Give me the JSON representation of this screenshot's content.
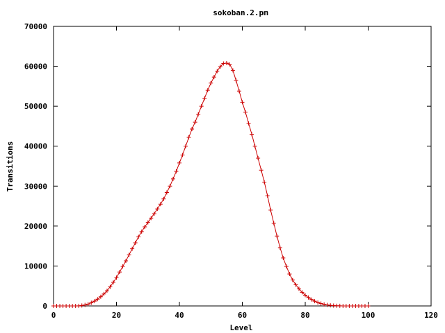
{
  "chart_data": {
    "type": "line",
    "title": "sokoban.2.pm",
    "xlabel": "Level",
    "ylabel": "Transitions",
    "xlim": [
      0,
      120
    ],
    "ylim": [
      0,
      70000
    ],
    "xticks": [
      "0",
      "20",
      "40",
      "60",
      "80",
      "100",
      "120"
    ],
    "yticks": [
      "0",
      "10000",
      "20000",
      "30000",
      "40000",
      "50000",
      "60000",
      "70000"
    ],
    "grid": false,
    "legend": "none",
    "marker": "plus",
    "series": [
      {
        "color": "#cc0000",
        "x": [
          0,
          1,
          2,
          3,
          4,
          5,
          6,
          7,
          8,
          9,
          10,
          11,
          12,
          13,
          14,
          15,
          16,
          17,
          18,
          19,
          20,
          21,
          22,
          23,
          24,
          25,
          26,
          27,
          28,
          29,
          30,
          31,
          32,
          33,
          34,
          35,
          36,
          37,
          38,
          39,
          40,
          41,
          42,
          43,
          44,
          45,
          46,
          47,
          48,
          49,
          50,
          51,
          52,
          53,
          54,
          55,
          56,
          57,
          58,
          59,
          60,
          61,
          62,
          63,
          64,
          65,
          66,
          67,
          68,
          69,
          70,
          71,
          72,
          73,
          74,
          75,
          76,
          77,
          78,
          79,
          80,
          81,
          82,
          83,
          84,
          85,
          86,
          87,
          88,
          89,
          90,
          91,
          92,
          93,
          94,
          95,
          96,
          97,
          98,
          99,
          100
        ],
        "y": [
          0,
          0,
          0,
          0,
          0,
          0,
          0,
          0,
          20,
          100,
          250,
          450,
          800,
          1200,
          1700,
          2300,
          3000,
          3800,
          4800,
          5900,
          7100,
          8500,
          9900,
          11300,
          12800,
          14300,
          15800,
          17300,
          18600,
          19800,
          20900,
          22000,
          23100,
          24300,
          25500,
          26800,
          28400,
          30000,
          31800,
          33700,
          35800,
          37800,
          40000,
          42200,
          44300,
          46000,
          48000,
          50000,
          52000,
          54000,
          55800,
          57300,
          58800,
          59900,
          60700,
          60800,
          60500,
          59000,
          56500,
          53800,
          51000,
          48500,
          45700,
          43000,
          40000,
          37000,
          34000,
          31000,
          27600,
          24000,
          20700,
          17500,
          14600,
          12000,
          9900,
          8000,
          6500,
          5300,
          4300,
          3400,
          2700,
          2100,
          1600,
          1200,
          850,
          600,
          400,
          260,
          160,
          90,
          40,
          15,
          5,
          0,
          0,
          0,
          0,
          0,
          0,
          0,
          0
        ]
      }
    ]
  }
}
